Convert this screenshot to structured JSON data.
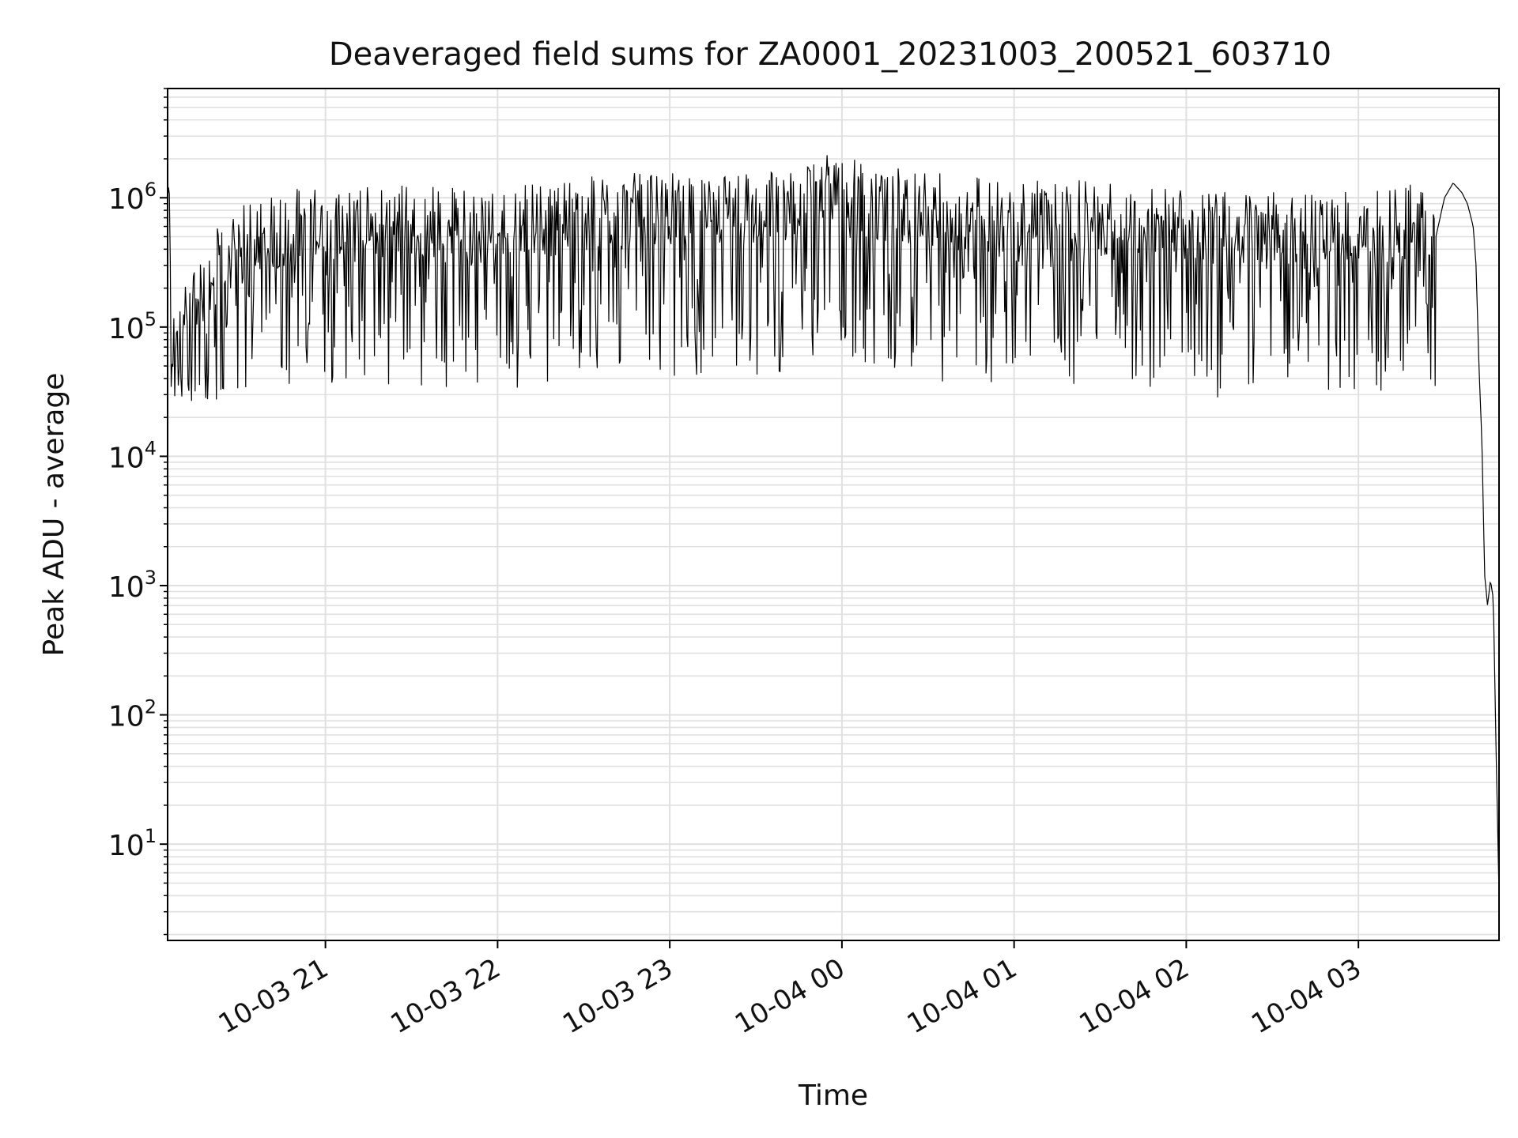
{
  "chart_data": {
    "type": "line",
    "title": "Deaveraged field sums for ZA0001_20231003_200521_603710",
    "xlabel": "Time",
    "ylabel": "Peak ADU - average",
    "yscale": "log",
    "ylim": [
      1.8,
      7000000
    ],
    "xlim": [
      "2023-10-03 20:05",
      "2023-10-04 03:49"
    ],
    "grid": true,
    "legend": "none",
    "line_color": "#000000",
    "grid_color": "#e0e0e0",
    "x_ticks": [
      {
        "value": "2023-10-03 21:00",
        "label": "10-03 21"
      },
      {
        "value": "2023-10-03 22:00",
        "label": "10-03 22"
      },
      {
        "value": "2023-10-03 23:00",
        "label": "10-03 23"
      },
      {
        "value": "2023-10-04 00:00",
        "label": "10-04 00"
      },
      {
        "value": "2023-10-04 01:00",
        "label": "10-04 01"
      },
      {
        "value": "2023-10-04 02:00",
        "label": "10-04 02"
      },
      {
        "value": "2023-10-04 03:00",
        "label": "10-04 03"
      }
    ],
    "y_ticks": [
      {
        "value": 10,
        "base": "10",
        "exp": "1"
      },
      {
        "value": 100,
        "base": "10",
        "exp": "2"
      },
      {
        "value": 1000,
        "base": "10",
        "exp": "3"
      },
      {
        "value": 10000,
        "base": "10",
        "exp": "4"
      },
      {
        "value": 100000,
        "base": "10",
        "exp": "5"
      },
      {
        "value": 1000000,
        "base": "10",
        "exp": "6"
      }
    ],
    "series": [
      {
        "x": [
          "2023-10-03 20:05",
          "2023-10-03 20:08",
          "2023-10-03 20:12",
          "2023-10-03 20:20",
          "2023-10-03 20:35",
          "2023-10-03 20:50",
          "2023-10-03 21:10",
          "2023-10-03 21:30",
          "2023-10-03 21:50",
          "2023-10-03 22:10",
          "2023-10-03 22:30",
          "2023-10-03 22:50",
          "2023-10-03 23:10",
          "2023-10-03 23:30",
          "2023-10-03 23:45",
          "2023-10-03 23:55",
          "2023-10-04 00:10",
          "2023-10-04 00:30",
          "2023-10-04 00:50",
          "2023-10-04 01:10",
          "2023-10-04 01:30",
          "2023-10-04 01:50",
          "2023-10-04 02:10",
          "2023-10-04 02:30",
          "2023-10-04 02:50",
          "2023-10-04 03:10",
          "2023-10-04 03:20",
          "2023-10-04 03:27",
          "2023-10-04 03:30",
          "2023-10-04 03:33",
          "2023-10-04 03:36",
          "2023-10-04 03:38",
          "2023-10-04 03:40",
          "2023-10-04 03:41",
          "2023-10-04 03:42",
          "2023-10-04 03:43",
          "2023-10-04 03:44",
          "2023-10-04 03:45",
          "2023-10-04 03:46",
          "2023-10-04 03:47",
          "2023-10-04 03:48",
          "2023-10-04 03:49"
        ],
        "y": [
          1000000,
          40000,
          100000,
          200000,
          400000,
          450000,
          480000,
          500000,
          450000,
          500000,
          550000,
          600000,
          650000,
          600000,
          700000,
          1300000,
          700000,
          600000,
          550000,
          550000,
          500000,
          480000,
          450000,
          420000,
          420000,
          450000,
          500000,
          500000,
          1000000,
          1300000,
          1100000,
          900000,
          600000,
          300000,
          50000,
          14000,
          1200,
          700,
          1100,
          800,
          50,
          4
        ],
        "noise_band": {
          "low": 30000,
          "high": 1800000
        }
      }
    ]
  }
}
